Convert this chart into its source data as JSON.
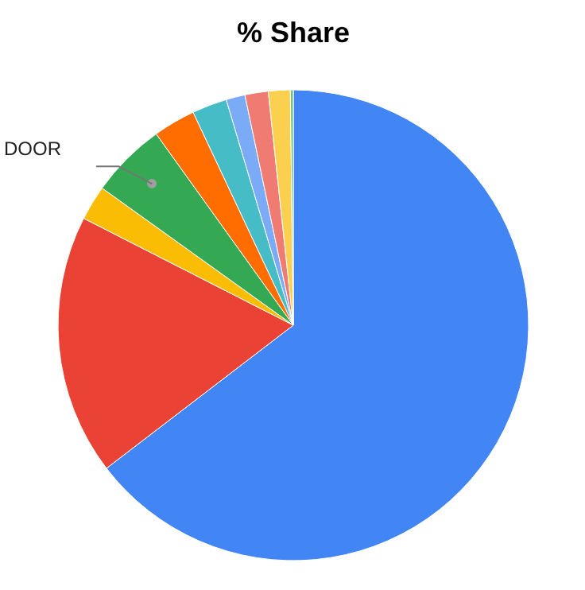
{
  "chart_data": {
    "type": "pie",
    "title": "% Share",
    "categories": [
      null,
      null,
      null,
      "DOOR",
      null,
      null,
      null,
      null,
      null,
      null
    ],
    "values": [
      64.6,
      17.9,
      2.4,
      5.2,
      2.9,
      2.4,
      1.3,
      1.6,
      1.5,
      0.2
    ],
    "colors": [
      "#4285f4",
      "#ea4335",
      "#fbbc04",
      "#34a853",
      "#ff6d01",
      "#46bdc6",
      "#7baaf7",
      "#f07b72",
      "#fcd04f",
      "#71c287"
    ]
  }
}
